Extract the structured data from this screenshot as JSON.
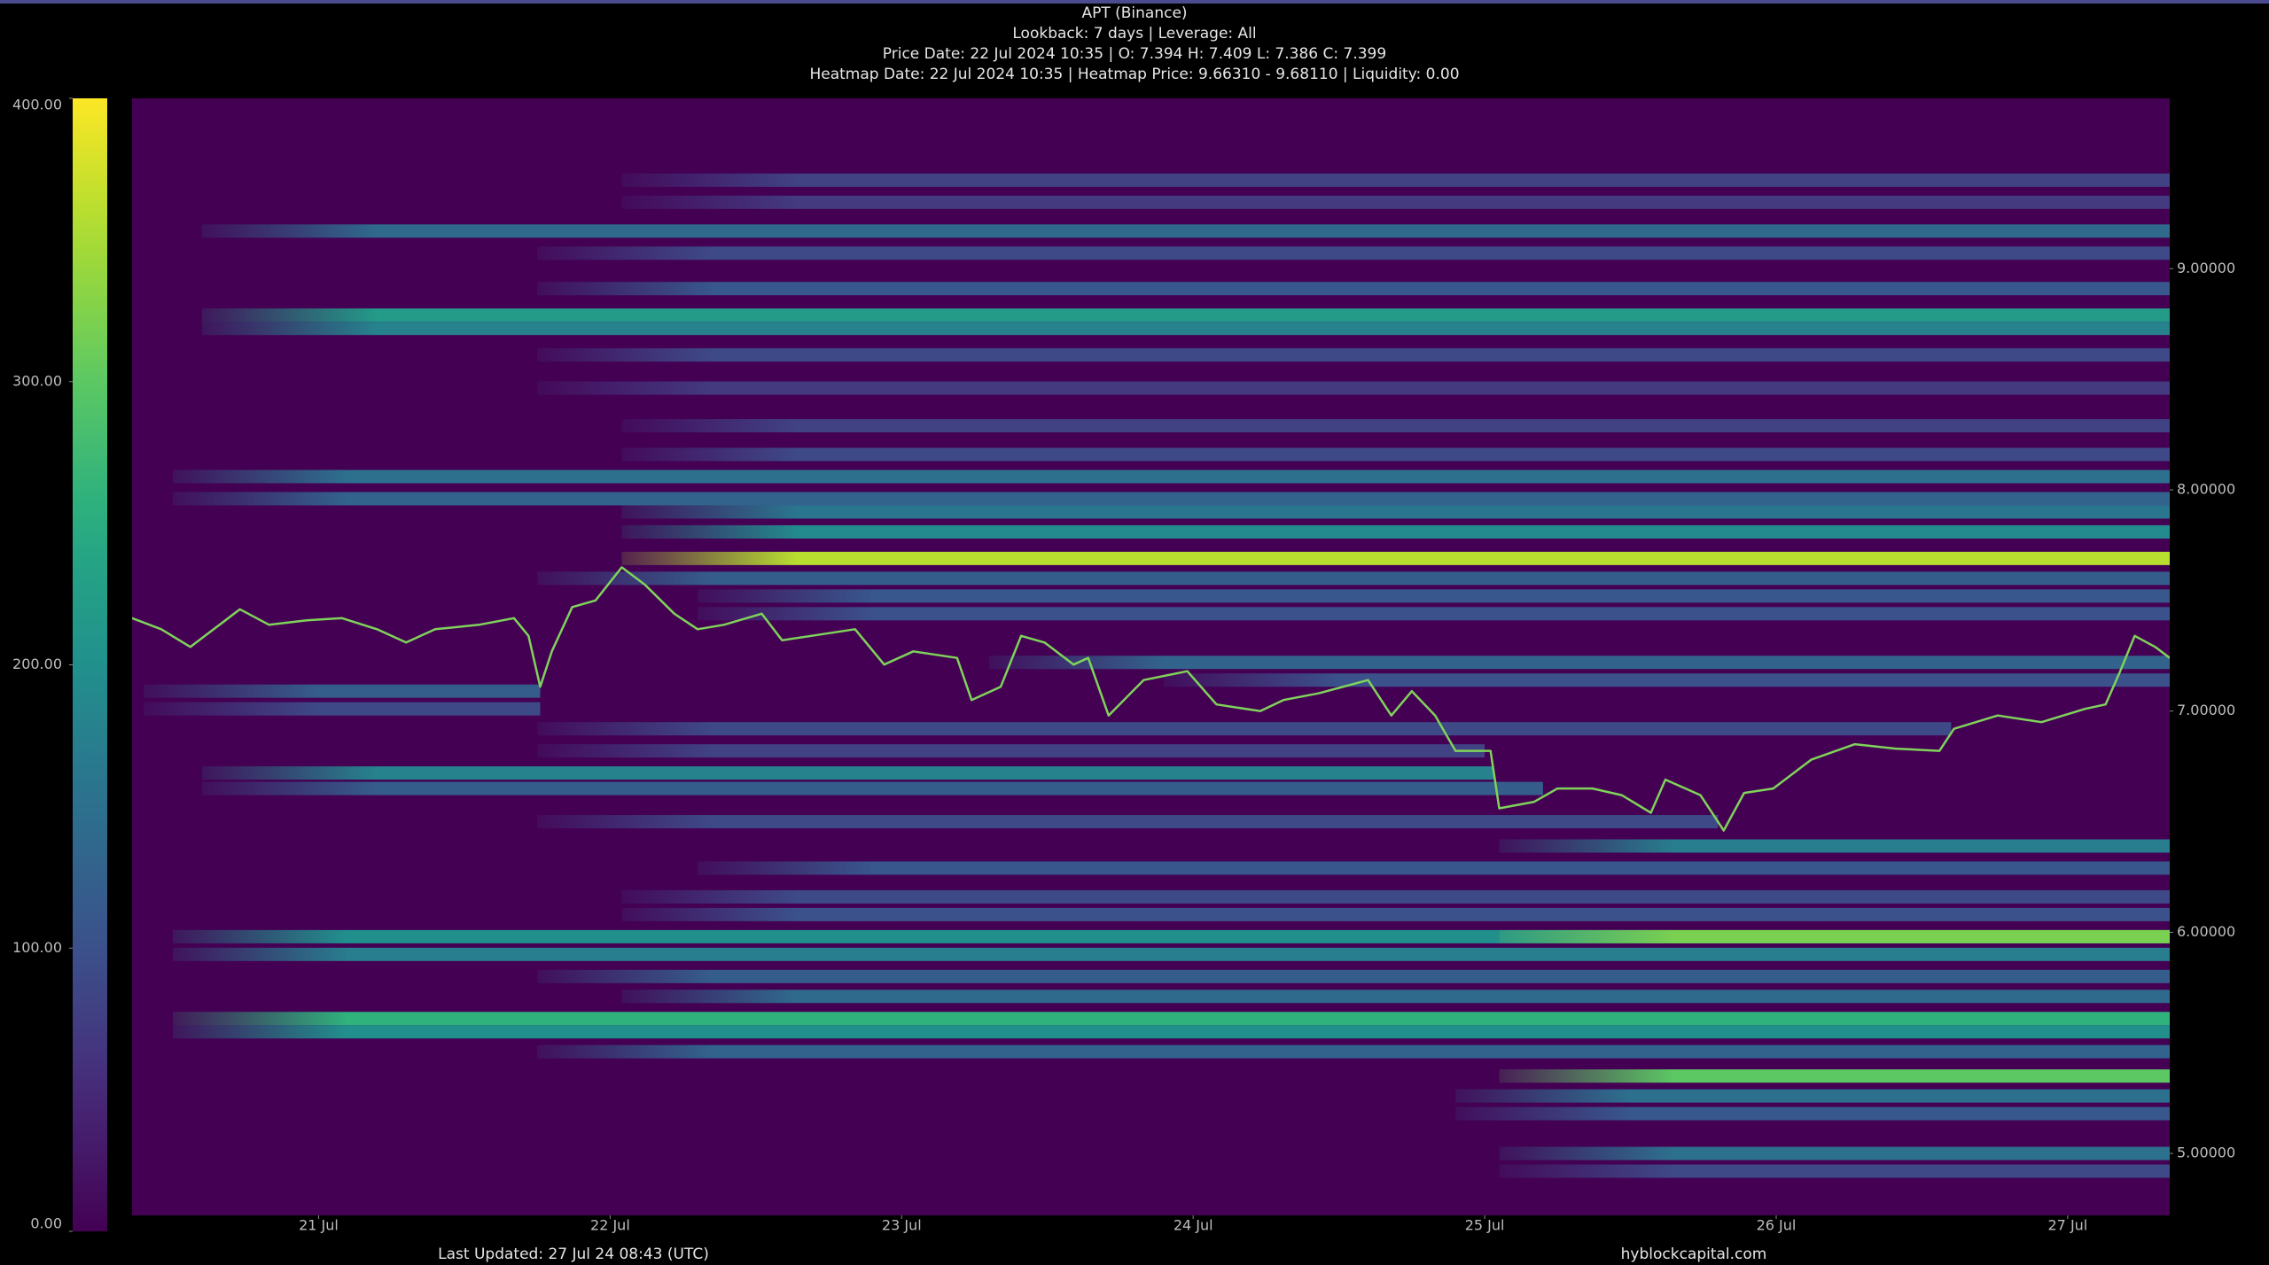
{
  "chart_data": {
    "type": "liquidation-heatmap",
    "title": "APT (Binance)",
    "subtitles": [
      "Lookback: 7 days | Leverage: All",
      "Price Date: 22 Jul 2024 10:35 | O: 7.394 H: 7.409 L: 7.386 C: 7.399",
      "Heatmap Date: 22 Jul 2024 10:35 | Heatmap Price: 9.66310 - 9.68110 | Liquidity: 0.00"
    ],
    "footer_left": "Last Updated: 27 Jul 24 08:43 (UTC)",
    "footer_right": "hyblockcapital.com",
    "colormap": "viridis",
    "background": "#440154",
    "clim": [
      0,
      400
    ],
    "cticks": [
      {
        "value": 0,
        "label": "0.00"
      },
      {
        "value": 100,
        "label": "100.00"
      },
      {
        "value": 200,
        "label": "200.00"
      },
      {
        "value": 300,
        "label": "300.00"
      },
      {
        "value": 400,
        "label": "400.00"
      }
    ],
    "xlim": [
      20.36,
      27.35
    ],
    "xticks": [
      {
        "value": 21,
        "label": "21 Jul"
      },
      {
        "value": 22,
        "label": "22 Jul"
      },
      {
        "value": 23,
        "label": "23 Jul"
      },
      {
        "value": 24,
        "label": "24 Jul"
      },
      {
        "value": 25,
        "label": "25 Jul"
      },
      {
        "value": 26,
        "label": "26 Jul"
      },
      {
        "value": 27,
        "label": "27 Jul"
      }
    ],
    "ylim": [
      4.72,
      9.77
    ],
    "yticks": [
      {
        "value": 5,
        "label": "5.00000"
      },
      {
        "value": 6,
        "label": "6.00000"
      },
      {
        "value": 7,
        "label": "7.00000"
      },
      {
        "value": 8,
        "label": "8.00000"
      },
      {
        "value": 9,
        "label": "9.00000"
      }
    ],
    "bands": [
      {
        "price": 9.4,
        "start": 22.04,
        "end": 27.35,
        "value": 80
      },
      {
        "price": 9.3,
        "start": 22.04,
        "end": 27.35,
        "value": 70
      },
      {
        "price": 9.17,
        "start": 20.6,
        "end": 27.35,
        "value": 140
      },
      {
        "price": 9.07,
        "start": 21.75,
        "end": 27.35,
        "value": 90
      },
      {
        "price": 8.91,
        "start": 21.75,
        "end": 27.35,
        "value": 110
      },
      {
        "price": 8.79,
        "start": 20.6,
        "end": 27.35,
        "value": 220
      },
      {
        "price": 8.73,
        "start": 20.6,
        "end": 27.35,
        "value": 180
      },
      {
        "price": 8.61,
        "start": 21.75,
        "end": 27.35,
        "value": 90
      },
      {
        "price": 8.46,
        "start": 21.75,
        "end": 27.35,
        "value": 70
      },
      {
        "price": 8.29,
        "start": 22.04,
        "end": 27.35,
        "value": 80
      },
      {
        "price": 8.16,
        "start": 22.04,
        "end": 27.35,
        "value": 90
      },
      {
        "price": 8.06,
        "start": 20.5,
        "end": 27.35,
        "value": 150
      },
      {
        "price": 7.96,
        "start": 20.5,
        "end": 27.35,
        "value": 130
      },
      {
        "price": 7.9,
        "start": 22.04,
        "end": 27.35,
        "value": 160
      },
      {
        "price": 7.81,
        "start": 22.04,
        "end": 27.35,
        "value": 190
      },
      {
        "price": 7.69,
        "start": 22.04,
        "end": 27.35,
        "value": 360
      },
      {
        "price": 7.6,
        "start": 21.75,
        "end": 27.35,
        "value": 120
      },
      {
        "price": 7.52,
        "start": 22.3,
        "end": 27.35,
        "value": 110
      },
      {
        "price": 7.44,
        "start": 22.3,
        "end": 27.35,
        "value": 100
      },
      {
        "price": 7.22,
        "start": 23.3,
        "end": 27.35,
        "value": 130
      },
      {
        "price": 7.14,
        "start": 23.9,
        "end": 27.35,
        "value": 100
      },
      {
        "price": 7.09,
        "start": 20.4,
        "end": 21.76,
        "value": 120
      },
      {
        "price": 7.01,
        "start": 20.4,
        "end": 21.76,
        "value": 90
      },
      {
        "price": 6.92,
        "start": 21.75,
        "end": 26.6,
        "value": 90
      },
      {
        "price": 6.82,
        "start": 21.75,
        "end": 25.0,
        "value": 80
      },
      {
        "price": 6.72,
        "start": 20.6,
        "end": 25.03,
        "value": 180
      },
      {
        "price": 6.65,
        "start": 20.6,
        "end": 25.2,
        "value": 120
      },
      {
        "price": 6.5,
        "start": 21.75,
        "end": 25.8,
        "value": 90
      },
      {
        "price": 6.39,
        "start": 25.05,
        "end": 27.35,
        "value": 170
      },
      {
        "price": 6.29,
        "start": 22.3,
        "end": 27.35,
        "value": 110
      },
      {
        "price": 6.16,
        "start": 22.04,
        "end": 27.35,
        "value": 90
      },
      {
        "price": 6.08,
        "start": 22.04,
        "end": 27.35,
        "value": 100
      },
      {
        "price": 5.98,
        "start": 20.5,
        "end": 27.35,
        "value": 200
      },
      {
        "price": 5.98,
        "start": 25.05,
        "end": 27.35,
        "value": 320
      },
      {
        "price": 5.9,
        "start": 20.5,
        "end": 27.35,
        "value": 170
      },
      {
        "price": 5.8,
        "start": 21.75,
        "end": 27.35,
        "value": 120
      },
      {
        "price": 5.71,
        "start": 22.04,
        "end": 27.35,
        "value": 140
      },
      {
        "price": 5.61,
        "start": 20.5,
        "end": 27.35,
        "value": 260
      },
      {
        "price": 5.55,
        "start": 20.5,
        "end": 27.35,
        "value": 200
      },
      {
        "price": 5.46,
        "start": 21.75,
        "end": 27.35,
        "value": 130
      },
      {
        "price": 5.35,
        "start": 25.05,
        "end": 27.35,
        "value": 300
      },
      {
        "price": 5.26,
        "start": 24.9,
        "end": 27.35,
        "value": 150
      },
      {
        "price": 5.18,
        "start": 24.9,
        "end": 27.35,
        "value": 110
      },
      {
        "price": 5.0,
        "start": 25.05,
        "end": 27.35,
        "value": 150
      },
      {
        "price": 4.92,
        "start": 25.05,
        "end": 27.35,
        "value": 90
      }
    ],
    "price": {
      "color": "#7fd35a",
      "x": [
        20.36,
        20.46,
        20.56,
        20.66,
        20.73,
        20.83,
        20.96,
        21.08,
        21.2,
        21.3,
        21.4,
        21.55,
        21.67,
        21.72,
        21.76,
        21.8,
        21.87,
        21.95,
        22.04,
        22.12,
        22.22,
        22.3,
        22.39,
        22.52,
        22.59,
        22.69,
        22.84,
        22.94,
        23.04,
        23.19,
        23.24,
        23.34,
        23.41,
        23.49,
        23.59,
        23.64,
        23.71,
        23.83,
        23.98,
        24.08,
        24.23,
        24.31,
        24.43,
        24.6,
        24.68,
        24.75,
        24.83,
        24.9,
        25.02,
        25.05,
        25.17,
        25.25,
        25.37,
        25.47,
        25.57,
        25.62,
        25.74,
        25.82,
        25.89,
        25.99,
        26.12,
        26.27,
        26.41,
        26.56,
        26.61,
        26.76,
        26.91,
        27.06,
        27.13,
        27.18,
        27.23,
        27.3,
        27.35
      ],
      "y": [
        7.42,
        7.37,
        7.29,
        7.39,
        7.46,
        7.39,
        7.41,
        7.42,
        7.37,
        7.31,
        7.37,
        7.39,
        7.42,
        7.34,
        7.11,
        7.27,
        7.47,
        7.5,
        7.65,
        7.57,
        7.44,
        7.37,
        7.39,
        7.44,
        7.32,
        7.34,
        7.37,
        7.21,
        7.27,
        7.24,
        7.05,
        7.11,
        7.34,
        7.31,
        7.21,
        7.24,
        6.98,
        7.14,
        7.18,
        7.03,
        7.0,
        7.05,
        7.08,
        7.14,
        6.98,
        7.09,
        6.98,
        6.82,
        6.82,
        6.56,
        6.59,
        6.65,
        6.65,
        6.62,
        6.54,
        6.69,
        6.62,
        6.46,
        6.63,
        6.65,
        6.78,
        6.85,
        6.83,
        6.82,
        6.92,
        6.98,
        6.95,
        7.01,
        7.03,
        7.18,
        7.34,
        7.29,
        7.24
      ]
    }
  }
}
